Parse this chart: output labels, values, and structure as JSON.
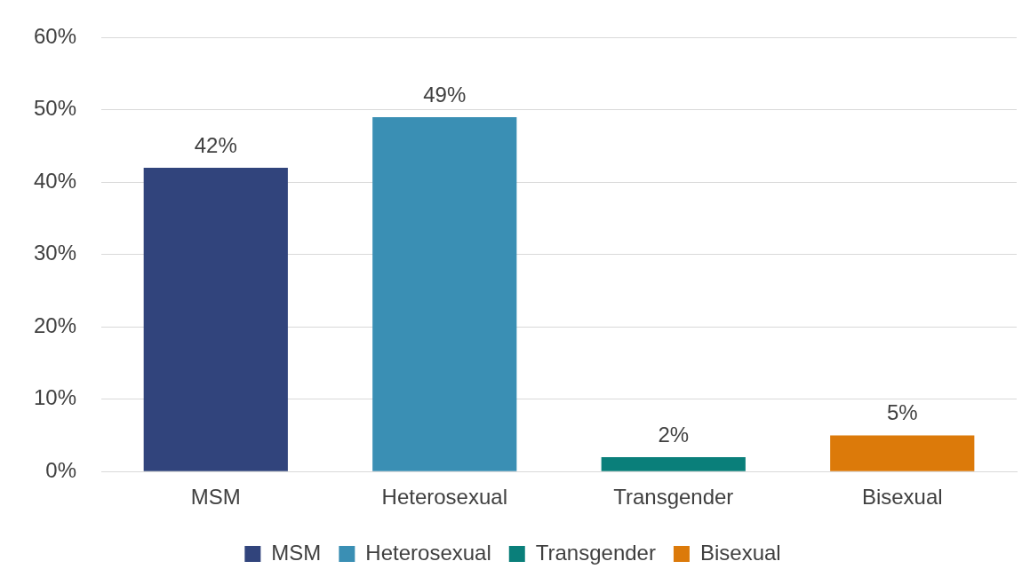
{
  "chart_data": {
    "type": "bar",
    "categories": [
      "MSM",
      "Heterosexual",
      "Transgender",
      "Bisexual"
    ],
    "series": [
      {
        "name": "MSM",
        "color": "#31447c",
        "values": [
          42,
          null,
          null,
          null
        ],
        "value_labels": [
          "42%",
          null,
          null,
          null
        ]
      },
      {
        "name": "Heterosexual",
        "color": "#3a8fb4",
        "values": [
          null,
          49,
          null,
          null
        ],
        "value_labels": [
          null,
          "49%",
          null,
          null
        ]
      },
      {
        "name": "Transgender",
        "color": "#0a7f7a",
        "values": [
          null,
          null,
          2,
          null
        ],
        "value_labels": [
          null,
          null,
          "2%",
          null
        ]
      },
      {
        "name": "Bisexual",
        "color": "#dc7a0a",
        "values": [
          null,
          null,
          null,
          5
        ],
        "value_labels": [
          null,
          null,
          null,
          "5%"
        ]
      }
    ],
    "ylim": [
      0,
      60
    ],
    "yticks": [
      {
        "value": 0,
        "label": "0%"
      },
      {
        "value": 10,
        "label": "10%"
      },
      {
        "value": 20,
        "label": "20%"
      },
      {
        "value": 30,
        "label": "30%"
      },
      {
        "value": 40,
        "label": "40%"
      },
      {
        "value": 50,
        "label": "50%"
      },
      {
        "value": 60,
        "label": "60%"
      }
    ],
    "grid": "y",
    "legend": "bottom"
  }
}
